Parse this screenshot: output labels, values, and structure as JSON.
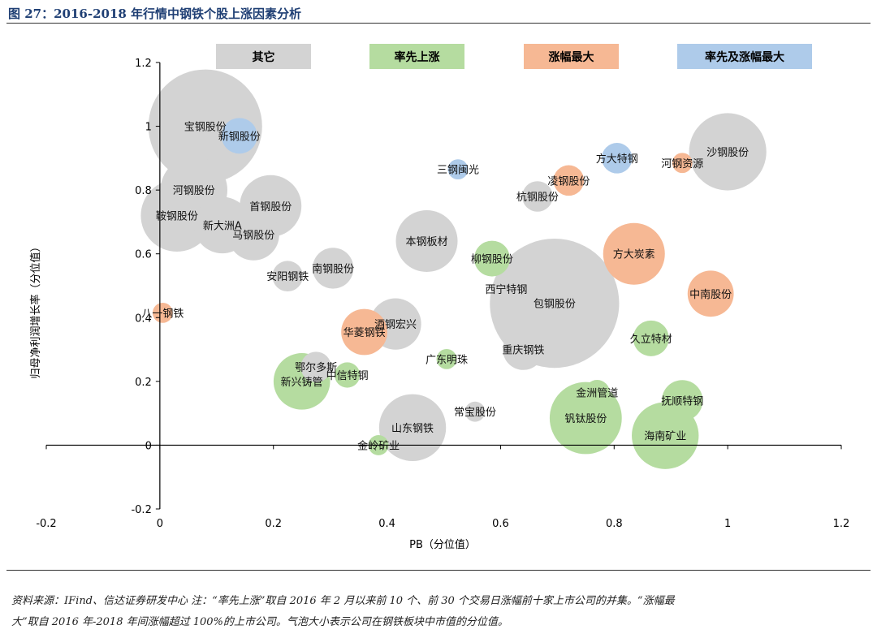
{
  "header": {
    "title": "图 27：2016-2018 年行情中钢铁个股上涨因素分析"
  },
  "footer": {
    "line1": "资料来源：IFind、信达证券研发中心 注：“率先上涨”取自 2016 年 2 月以来前 10 个、前 30 个交易日涨幅前十家上市公司的并集。“涨幅最",
    "line2": "大”取自 2016 年-2018 年间涨幅超过 100%的上市公司。气泡大小表示公司在钢铁板块中市值的分位值。"
  },
  "chart_data": {
    "type": "scatter",
    "title": "",
    "xlabel": "PB（分位值）",
    "ylabel": "归母净利润增长率（分位值）",
    "xlim": [
      -0.2,
      1.2
    ],
    "ylim": [
      -0.2,
      1.2
    ],
    "xticks": [
      "-0.2",
      "0",
      "0.2",
      "0.4",
      "0.6",
      "0.8",
      "1",
      "1.2"
    ],
    "yticks": [
      "-0.2",
      "0",
      "0.2",
      "0.4",
      "0.6",
      "0.8",
      "1",
      "1.2"
    ],
    "legend_position": "top",
    "colors": {
      "其它": "#d3d3d3",
      "率先上涨": "#b5dca0",
      "涨幅最大": "#f6b894",
      "率先及涨幅最大": "#aecbea"
    },
    "categories": [
      "其它",
      "率先上涨",
      "涨幅最大",
      "率先及涨幅最大"
    ],
    "points": [
      {
        "name": "宝钢股份",
        "x": 0.08,
        "y": 1.0,
        "size": 1.0,
        "category": "其它"
      },
      {
        "name": "新钢股份",
        "x": 0.14,
        "y": 0.97,
        "size": 0.25,
        "category": "率先及涨幅最大"
      },
      {
        "name": "河钢股份",
        "x": 0.06,
        "y": 0.8,
        "size": 0.55,
        "category": "其它"
      },
      {
        "name": "鞍钢股份",
        "x": 0.03,
        "y": 0.72,
        "size": 0.6,
        "category": "其它"
      },
      {
        "name": "新大洲A",
        "x": 0.11,
        "y": 0.69,
        "size": 0.45,
        "category": "其它"
      },
      {
        "name": "首钢股份",
        "x": 0.195,
        "y": 0.75,
        "size": 0.5,
        "category": "其它"
      },
      {
        "name": "马钢股份",
        "x": 0.165,
        "y": 0.66,
        "size": 0.4,
        "category": "其它"
      },
      {
        "name": "安阳钢铁",
        "x": 0.225,
        "y": 0.53,
        "size": 0.2,
        "category": "其它"
      },
      {
        "name": "南钢股份",
        "x": 0.305,
        "y": 0.555,
        "size": 0.3,
        "category": "其它"
      },
      {
        "name": "八一钢铁",
        "x": 0.005,
        "y": 0.415,
        "size": 0.1,
        "category": "涨幅最大"
      },
      {
        "name": "酒钢宏兴",
        "x": 0.415,
        "y": 0.38,
        "size": 0.4,
        "category": "其它"
      },
      {
        "name": "华菱钢铁",
        "x": 0.36,
        "y": 0.355,
        "size": 0.35,
        "category": "涨幅最大"
      },
      {
        "name": "鄂尔多斯",
        "x": 0.275,
        "y": 0.245,
        "size": 0.2,
        "category": "其它"
      },
      {
        "name": "中信特钢",
        "x": 0.33,
        "y": 0.22,
        "size": 0.15,
        "category": "率先上涨"
      },
      {
        "name": "新兴铸管",
        "x": 0.25,
        "y": 0.2,
        "size": 0.45,
        "category": "率先上涨"
      },
      {
        "name": "广东明珠",
        "x": 0.505,
        "y": 0.27,
        "size": 0.1,
        "category": "率先上涨"
      },
      {
        "name": "本钢板材",
        "x": 0.47,
        "y": 0.64,
        "size": 0.5,
        "category": "其它"
      },
      {
        "name": "三钢闽光",
        "x": 0.525,
        "y": 0.865,
        "size": 0.1,
        "category": "率先及涨幅最大"
      },
      {
        "name": "柳钢股份",
        "x": 0.585,
        "y": 0.585,
        "size": 0.25,
        "category": "率先上涨"
      },
      {
        "name": "西宁特钢",
        "x": 0.61,
        "y": 0.49,
        "size": 0.1,
        "category": "其它"
      },
      {
        "name": "包钢股份",
        "x": 0.695,
        "y": 0.445,
        "size": 1.15,
        "category": "其它"
      },
      {
        "name": "重庆钢铁",
        "x": 0.64,
        "y": 0.3,
        "size": 0.3,
        "category": "其它"
      },
      {
        "name": "常宝股份",
        "x": 0.555,
        "y": 0.105,
        "size": 0.1,
        "category": "其它"
      },
      {
        "name": "山东钢铁",
        "x": 0.445,
        "y": 0.055,
        "size": 0.55,
        "category": "其它"
      },
      {
        "name": "金岭矿业",
        "x": 0.385,
        "y": 0.0,
        "size": 0.1,
        "category": "率先上涨"
      },
      {
        "name": "凌钢股份",
        "x": 0.72,
        "y": 0.83,
        "size": 0.2,
        "category": "涨幅最大"
      },
      {
        "name": "杭钢股份",
        "x": 0.665,
        "y": 0.78,
        "size": 0.2,
        "category": "其它"
      },
      {
        "name": "方大特钢",
        "x": 0.805,
        "y": 0.9,
        "size": 0.2,
        "category": "率先及涨幅最大"
      },
      {
        "name": "方大炭素",
        "x": 0.835,
        "y": 0.6,
        "size": 0.5,
        "category": "涨幅最大"
      },
      {
        "name": "久立特材",
        "x": 0.865,
        "y": 0.335,
        "size": 0.25,
        "category": "率先上涨"
      },
      {
        "name": "金洲管道",
        "x": 0.77,
        "y": 0.165,
        "size": 0.15,
        "category": "率先上涨"
      },
      {
        "name": "钒钛股份",
        "x": 0.75,
        "y": 0.085,
        "size": 0.6,
        "category": "率先上涨"
      },
      {
        "name": "海南矿业",
        "x": 0.89,
        "y": 0.03,
        "size": 0.55,
        "category": "率先上涨"
      },
      {
        "name": "抚顺特钢",
        "x": 0.92,
        "y": 0.14,
        "size": 0.3,
        "category": "率先上涨"
      },
      {
        "name": "中南股份",
        "x": 0.97,
        "y": 0.475,
        "size": 0.35,
        "category": "涨幅最大"
      },
      {
        "name": "沙钢股份",
        "x": 1.0,
        "y": 0.92,
        "size": 0.65,
        "category": "其它"
      },
      {
        "name": "河钢资源",
        "x": 0.92,
        "y": 0.885,
        "size": 0.1,
        "category": "涨幅最大"
      }
    ]
  }
}
